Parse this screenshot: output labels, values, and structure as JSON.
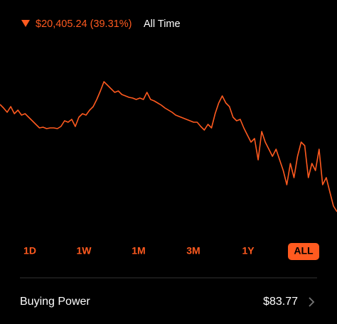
{
  "header": {
    "change": "$20,405.24 (39.31%)",
    "period": "All Time"
  },
  "chart_data": {
    "type": "line",
    "color": "#ff5a1f",
    "values": [
      253,
      248,
      242,
      250,
      240,
      245,
      238,
      240,
      235,
      230,
      225,
      220,
      221,
      219,
      220,
      220,
      219,
      222,
      230,
      228,
      232,
      222,
      235,
      240,
      238,
      245,
      250,
      260,
      272,
      285,
      280,
      275,
      270,
      272,
      267,
      265,
      263,
      262,
      260,
      262,
      260,
      270,
      260,
      258,
      255,
      252,
      248,
      245,
      242,
      238,
      236,
      234,
      232,
      230,
      228,
      228,
      222,
      217,
      225,
      220,
      240,
      255,
      265,
      255,
      250,
      235,
      230,
      232,
      220,
      210,
      200,
      205,
      175,
      215,
      200,
      190,
      180,
      190,
      175,
      160,
      140,
      170,
      150,
      180,
      200,
      195,
      150,
      170,
      160,
      190,
      140,
      150,
      130,
      110,
      102
    ]
  },
  "ranges": [
    "1D",
    "1W",
    "1M",
    "3M",
    "1Y",
    "ALL"
  ],
  "selected_range": "ALL",
  "buying_power": {
    "label": "Buying Power",
    "value": "$83.77"
  }
}
